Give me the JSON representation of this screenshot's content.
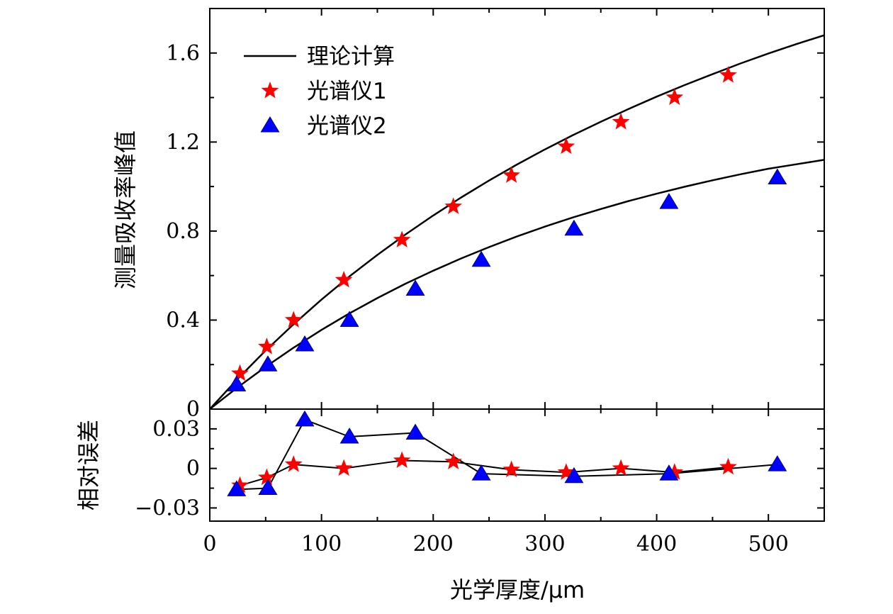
{
  "chart_data": [
    {
      "type": "line",
      "panel": "top",
      "ylabel": "测量吸收率峰值",
      "xlabel": "",
      "xlim": [
        0,
        550
      ],
      "ylim": [
        0,
        1.8
      ],
      "x_ticks": [
        0,
        100,
        200,
        300,
        400,
        500
      ],
      "y_ticks": [
        0,
        0.4,
        0.8,
        1.2,
        1.6
      ],
      "y_tick_labels": [
        "0",
        "0.4",
        "0.8",
        "1.2",
        "1.6"
      ],
      "legend_position": "top-left",
      "series": [
        {
          "name": "理论计算",
          "kind": "curve",
          "color": "#000000",
          "marker": "none",
          "x": [
            0,
            25,
            50,
            75,
            100,
            125,
            150,
            175,
            200,
            225,
            250,
            275,
            300,
            325,
            350,
            375,
            400,
            425,
            450,
            475,
            500,
            525,
            550
          ],
          "values": [
            0,
            0.136,
            0.263,
            0.381,
            0.492,
            0.596,
            0.693,
            0.784,
            0.87,
            0.951,
            1.027,
            1.099,
            1.167,
            1.231,
            1.291,
            1.349,
            1.404,
            1.456,
            1.505,
            1.553,
            1.598,
            1.64,
            1.68
          ]
        },
        {
          "name": "",
          "kind": "curve",
          "color": "#000000",
          "marker": "none",
          "x": [
            0,
            25,
            50,
            75,
            100,
            125,
            150,
            175,
            200,
            225,
            250,
            275,
            300,
            325,
            350,
            375,
            400,
            425,
            450,
            475,
            500,
            525,
            550
          ],
          "values": [
            0,
            0.098,
            0.19,
            0.276,
            0.356,
            0.43,
            0.499,
            0.563,
            0.622,
            0.677,
            0.728,
            0.776,
            0.82,
            0.861,
            0.899,
            0.935,
            0.968,
            0.999,
            1.028,
            1.055,
            1.08,
            1.1,
            1.12
          ]
        },
        {
          "name": "光谱仪1",
          "kind": "markers",
          "color": "#ff0000",
          "marker": "star",
          "x": [
            27,
            51,
            75,
            120,
            172,
            218,
            270,
            319,
            368,
            416,
            464
          ],
          "values": [
            0.16,
            0.28,
            0.4,
            0.58,
            0.76,
            0.91,
            1.05,
            1.18,
            1.29,
            1.4,
            1.5
          ]
        },
        {
          "name": "光谱仪2",
          "kind": "markers",
          "color": "#0000ff",
          "marker": "triangle",
          "x": [
            24,
            52,
            85,
            125,
            184,
            243,
            326,
            411,
            508
          ],
          "values": [
            0.11,
            0.2,
            0.29,
            0.4,
            0.54,
            0.67,
            0.81,
            0.93,
            1.04
          ]
        }
      ]
    },
    {
      "type": "line",
      "panel": "bottom",
      "ylabel": "相对误差",
      "xlabel": "光学厚度/μm",
      "xlim": [
        0,
        550
      ],
      "ylim": [
        -0.04,
        0.045
      ],
      "x_ticks": [
        0,
        100,
        200,
        300,
        400,
        500
      ],
      "x_tick_labels": [
        "0",
        "100",
        "200",
        "300",
        "400",
        "500"
      ],
      "y_ticks": [
        -0.03,
        0,
        0.03
      ],
      "y_tick_labels": [
        "−0.03",
        "0",
        "0.03"
      ],
      "series": [
        {
          "name": "光谱仪1",
          "kind": "line+markers",
          "color": "#ff0000",
          "marker": "star",
          "x": [
            27,
            51,
            75,
            120,
            172,
            218,
            270,
            319,
            368,
            416,
            464
          ],
          "values": [
            -0.013,
            -0.007,
            0.003,
            0.0,
            0.006,
            0.005,
            -0.001,
            -0.003,
            0.0,
            -0.003,
            0.001
          ]
        },
        {
          "name": "光谱仪2",
          "kind": "line+markers",
          "color": "#0000ff",
          "marker": "triangle",
          "x": [
            24,
            52,
            85,
            125,
            184,
            243,
            326,
            411,
            508
          ],
          "values": [
            -0.016,
            -0.015,
            0.037,
            0.024,
            0.027,
            -0.004,
            -0.006,
            -0.004,
            0.003
          ]
        }
      ]
    }
  ]
}
